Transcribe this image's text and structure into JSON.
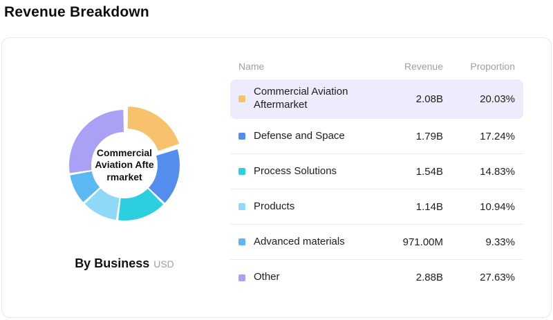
{
  "page": {
    "title": "Revenue Breakdown"
  },
  "chart": {
    "center_label": "Commercial Aviation Aftermarket",
    "caption": "By Business",
    "unit": "USD"
  },
  "table": {
    "headers": [
      "Name",
      "Revenue",
      "Proportion"
    ]
  },
  "chart_data": {
    "type": "pie",
    "donut": true,
    "title": "By Business",
    "unit": "USD",
    "center_label": "Commercial Aviation Aftermarket",
    "legend_position": "right-table",
    "rows": [
      {
        "name": "Commercial Aviation Aftermarket",
        "revenue": "2.08B",
        "proportion": "20.03%",
        "value": 20.03,
        "color": "#f8c26c",
        "highlighted": true
      },
      {
        "name": "Defense and Space",
        "revenue": "1.79B",
        "proportion": "17.24%",
        "value": 17.24,
        "color": "#538eee",
        "highlighted": false
      },
      {
        "name": "Process Solutions",
        "revenue": "1.54B",
        "proportion": "14.83%",
        "value": 14.83,
        "color": "#2bcfe0",
        "highlighted": false
      },
      {
        "name": "Products",
        "revenue": "1.14B",
        "proportion": "10.94%",
        "value": 10.94,
        "color": "#8ed9f8",
        "highlighted": false
      },
      {
        "name": "Advanced materials",
        "revenue": "971.00M",
        "proportion": "9.33%",
        "value": 9.33,
        "color": "#5cb8f3",
        "highlighted": false
      },
      {
        "name": "Other",
        "revenue": "2.88B",
        "proportion": "27.63%",
        "value": 27.63,
        "color": "#a9a1f5",
        "highlighted": false
      }
    ]
  }
}
